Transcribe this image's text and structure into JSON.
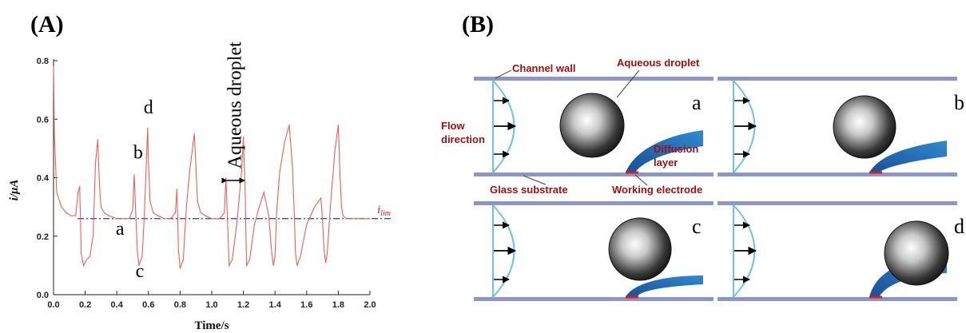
{
  "panels": {
    "a_label": "(A)",
    "b_label": "(B)"
  },
  "chart_data": {
    "type": "line",
    "title": "",
    "xlabel": "Time/s",
    "ylabel": "i/μA",
    "xlim": [
      0.0,
      2.0
    ],
    "ylim": [
      0.0,
      0.8
    ],
    "x_ticks": [
      "0.0",
      "0.2",
      "0.4",
      "0.6",
      "0.8",
      "1.0",
      "1.2",
      "1.4",
      "1.6",
      "1.8",
      "2.0"
    ],
    "y_ticks": [
      "0.0",
      "0.2",
      "0.4",
      "0.6",
      "0.8"
    ],
    "grid": false,
    "reference_line": {
      "label_main": "i",
      "label_sub": "lim",
      "y": 0.26
    },
    "series": [
      {
        "color": "#e8605a",
        "x": [
          0.0,
          0.005,
          0.02,
          0.05,
          0.08,
          0.11,
          0.14,
          0.155,
          0.165,
          0.175,
          0.19,
          0.21,
          0.23,
          0.25,
          0.265,
          0.28,
          0.29,
          0.3,
          0.32,
          0.35,
          0.4,
          0.45,
          0.48,
          0.5,
          0.51,
          0.52,
          0.53,
          0.54,
          0.56,
          0.575,
          0.59,
          0.595,
          0.6,
          0.61,
          0.63,
          0.66,
          0.7,
          0.74,
          0.77,
          0.78,
          0.79,
          0.8,
          0.82,
          0.84,
          0.86,
          0.89,
          0.9,
          0.91,
          0.93,
          0.96,
          1.0,
          1.05,
          1.08,
          1.09,
          1.1,
          1.11,
          1.13,
          1.16,
          1.19,
          1.2,
          1.21,
          1.22,
          1.24,
          1.27,
          1.3,
          1.33,
          1.36,
          1.38,
          1.39,
          1.4,
          1.41,
          1.43,
          1.46,
          1.49,
          1.51,
          1.52,
          1.53,
          1.54,
          1.56,
          1.6,
          1.65,
          1.69,
          1.7,
          1.71,
          1.72,
          1.73,
          1.75,
          1.78,
          1.8,
          1.81,
          1.82,
          1.83,
          1.85,
          1.88,
          1.92,
          1.96,
          2.0
        ],
        "y": [
          0.78,
          0.55,
          0.35,
          0.3,
          0.28,
          0.27,
          0.27,
          0.35,
          0.37,
          0.14,
          0.1,
          0.12,
          0.13,
          0.2,
          0.45,
          0.53,
          0.38,
          0.3,
          0.28,
          0.27,
          0.26,
          0.26,
          0.26,
          0.29,
          0.41,
          0.27,
          0.15,
          0.1,
          0.13,
          0.28,
          0.5,
          0.57,
          0.45,
          0.32,
          0.28,
          0.27,
          0.26,
          0.26,
          0.28,
          0.36,
          0.15,
          0.09,
          0.12,
          0.3,
          0.42,
          0.55,
          0.44,
          0.32,
          0.28,
          0.27,
          0.26,
          0.26,
          0.28,
          0.4,
          0.25,
          0.1,
          0.12,
          0.25,
          0.43,
          0.54,
          0.38,
          0.1,
          0.12,
          0.24,
          0.3,
          0.35,
          0.27,
          0.14,
          0.1,
          0.13,
          0.28,
          0.42,
          0.52,
          0.58,
          0.44,
          0.3,
          0.14,
          0.1,
          0.13,
          0.24,
          0.3,
          0.33,
          0.26,
          0.15,
          0.11,
          0.14,
          0.3,
          0.5,
          0.58,
          0.42,
          0.3,
          0.27,
          0.26,
          0.26,
          0.26,
          0.26,
          0.26
        ]
      }
    ],
    "annotations": [
      {
        "text": "a",
        "x": 0.42,
        "y": 0.205
      },
      {
        "text": "b",
        "x": 0.535,
        "y": 0.465
      },
      {
        "text": "c",
        "x": 0.545,
        "y": 0.06
      },
      {
        "text": "d",
        "x": 0.6,
        "y": 0.62
      },
      {
        "text": "Aqueous droplet",
        "x": 1.15,
        "y": 0.43
      }
    ]
  },
  "diagram": {
    "labels": {
      "channel_wall": "Channel wall",
      "aqueous_droplet": "Aqueous droplet",
      "flow_direction_1": "Flow",
      "flow_direction_2": "direction",
      "diffusion_1": "Diffusion",
      "diffusion_2": "layer",
      "glass_substrate": "Glass substrate",
      "working_electrode": "Working electrode"
    },
    "stages": [
      "a",
      "b",
      "c",
      "d"
    ],
    "colors": {
      "wall": "#8e95cc",
      "profile": "#6fc3e0",
      "diffusion": "#2a7cc4",
      "electrode": "#d02020",
      "label": "#a01010",
      "reference_line": "#3333aa"
    }
  }
}
